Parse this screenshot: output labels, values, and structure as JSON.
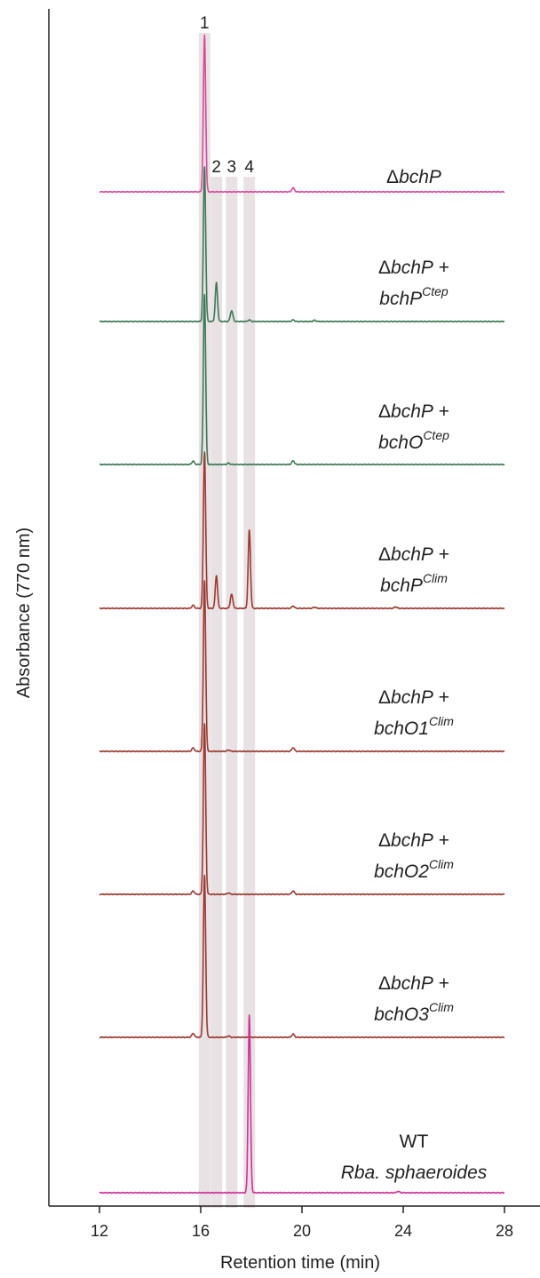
{
  "chart_data": {
    "type": "line",
    "title": "",
    "xlabel": "Retention time (min)",
    "ylabel": "Absorbance (770 nm)",
    "xlim": [
      10,
      29.5
    ],
    "x_ticks": [
      12,
      16,
      20,
      24,
      28
    ],
    "trace_x_range": [
      12,
      28
    ],
    "grid": false,
    "legend": "none",
    "highlight_bands": [
      {
        "label": "1",
        "center": 16.15
      },
      {
        "label": "2",
        "center": 16.62
      },
      {
        "label": "3",
        "center": 17.22
      },
      {
        "label": "4",
        "center": 17.92
      }
    ],
    "series": [
      {
        "label_line1": "ΔbchP",
        "label_line2": "",
        "superscript": "",
        "color": "#d84a9c",
        "peaks": [
          {
            "x": 16.15,
            "height": 1.0
          },
          {
            "x": 19.65,
            "height": 0.025
          }
        ]
      },
      {
        "label_line1": "ΔbchP +",
        "label_line2": "bchP",
        "superscript": "Ctep",
        "color": "#3c7a54",
        "peaks": [
          {
            "x": 16.15,
            "height": 1.0
          },
          {
            "x": 16.62,
            "height": 0.25
          },
          {
            "x": 17.22,
            "height": 0.07
          },
          {
            "x": 17.92,
            "height": 0.01
          },
          {
            "x": 19.65,
            "height": 0.01
          },
          {
            "x": 20.5,
            "height": 0.008
          }
        ]
      },
      {
        "label_line1": "ΔbchP +",
        "label_line2": "bchO",
        "superscript": "Ctep",
        "color": "#3c7a54",
        "peaks": [
          {
            "x": 15.7,
            "height": 0.02
          },
          {
            "x": 16.15,
            "height": 1.0
          },
          {
            "x": 17.1,
            "height": 0.008
          },
          {
            "x": 19.65,
            "height": 0.022
          }
        ]
      },
      {
        "label_line1": "ΔbchP +",
        "label_line2": "bchP",
        "superscript": "Clim",
        "color": "#9b3a30",
        "peaks": [
          {
            "x": 15.7,
            "height": 0.02
          },
          {
            "x": 16.15,
            "height": 1.0
          },
          {
            "x": 16.62,
            "height": 0.21
          },
          {
            "x": 17.22,
            "height": 0.09
          },
          {
            "x": 17.92,
            "height": 0.5
          },
          {
            "x": 19.65,
            "height": 0.015
          },
          {
            "x": 20.5,
            "height": 0.008
          },
          {
            "x": 23.7,
            "height": 0.01
          }
        ]
      },
      {
        "label_line1": "ΔbchP +",
        "label_line2": "bchO1",
        "superscript": "Clim",
        "color": "#9b3a30",
        "peaks": [
          {
            "x": 15.7,
            "height": 0.02
          },
          {
            "x": 16.15,
            "height": 1.0
          },
          {
            "x": 17.1,
            "height": 0.008
          },
          {
            "x": 19.65,
            "height": 0.022
          }
        ]
      },
      {
        "label_line1": "ΔbchP +",
        "label_line2": "bchO2",
        "superscript": "Clim",
        "color": "#9b3a30",
        "peaks": [
          {
            "x": 15.7,
            "height": 0.02
          },
          {
            "x": 16.15,
            "height": 1.0
          },
          {
            "x": 17.1,
            "height": 0.008
          },
          {
            "x": 19.65,
            "height": 0.02
          }
        ]
      },
      {
        "label_line1": "ΔbchP +",
        "label_line2": "bchO3",
        "superscript": "Clim",
        "color": "#9b3a30",
        "peaks": [
          {
            "x": 15.7,
            "height": 0.025
          },
          {
            "x": 16.15,
            "height": 1.0
          },
          {
            "x": 17.1,
            "height": 0.008
          },
          {
            "x": 19.65,
            "height": 0.02
          }
        ]
      },
      {
        "label_line1": "WT",
        "label_line2": "Rba. sphaeroides",
        "superscript": "",
        "color": "#d0309a",
        "peaks": [
          {
            "x": 17.92,
            "height": 1.0
          },
          {
            "x": 23.8,
            "height": 0.008
          }
        ]
      }
    ]
  }
}
